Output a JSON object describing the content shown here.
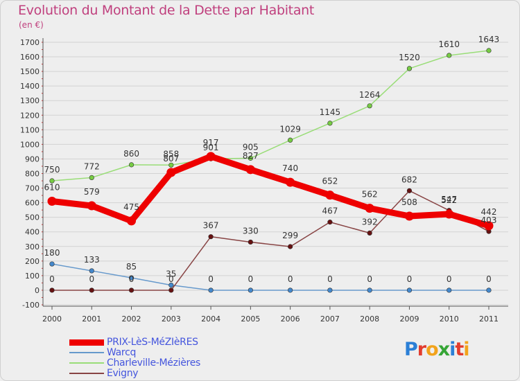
{
  "title": "Evolution du Montant de la Dette par Habitant",
  "unit_label": "(en €)",
  "logo": {
    "text": "Proxiti",
    "letters": [
      {
        "ch": "P",
        "color": "#2b7fd6"
      },
      {
        "ch": "r",
        "color": "#e23c2e"
      },
      {
        "ch": "o",
        "color": "#f2a31b"
      },
      {
        "ch": "x",
        "color": "#35a535"
      },
      {
        "ch": "i",
        "color": "#2b7fd6"
      },
      {
        "ch": "t",
        "color": "#e23c2e"
      },
      {
        "ch": "i",
        "color": "#f2a31b"
      }
    ]
  },
  "chart_data": {
    "type": "line",
    "x": [
      "2000",
      "2001",
      "2002",
      "2003",
      "2004",
      "2005",
      "2006",
      "2007",
      "2008",
      "2009",
      "2010",
      "2011"
    ],
    "ylim": [
      -100,
      1700
    ],
    "yticks": [
      "-100",
      "0",
      "100",
      "200",
      "300",
      "400",
      "500",
      "600",
      "700",
      "800",
      "900",
      "1000",
      "1100",
      "1200",
      "1300",
      "1400",
      "1500",
      "1600",
      "1700"
    ],
    "grid": "horizontal",
    "legend_position": "bottom-left",
    "series": [
      {
        "name": "PRIX-LèS-MéZIèRES",
        "color": "#ee0000",
        "marker": "#ee0000",
        "style": "thick",
        "values": [
          610,
          579,
          475,
          807,
          917,
          827,
          740,
          652,
          562,
          508,
          522,
          442
        ],
        "labels": [
          "610",
          "579",
          "475",
          "807",
          "917",
          "827",
          "740",
          "652",
          "562",
          "508",
          "522",
          "442"
        ]
      },
      {
        "name": "Warcq",
        "color": "#6699cc",
        "marker": "#4488cc",
        "style": "thin",
        "values": [
          180,
          133,
          85,
          35,
          0,
          0,
          0,
          0,
          0,
          0,
          0,
          0
        ],
        "labels": [
          "180",
          "133",
          "85",
          "35",
          "0",
          "0",
          "0",
          "0",
          "0",
          "0",
          "0",
          "0"
        ]
      },
      {
        "name": "Charleville-Mézières",
        "color": "#99dd77",
        "marker": "#77cc44",
        "style": "thin",
        "values": [
          750,
          772,
          860,
          858,
          901,
          905,
          1029,
          1145,
          1264,
          1520,
          1610,
          1643
        ],
        "labels": [
          "750",
          "772",
          "860",
          "858",
          "901",
          "905",
          "1029",
          "1145",
          "1264",
          "1520",
          "1610",
          "1643"
        ]
      },
      {
        "name": "Evigny",
        "color": "#884444",
        "marker": "#661111",
        "style": "thin",
        "values": [
          0,
          0,
          0,
          0,
          367,
          330,
          299,
          467,
          392,
          682,
          547,
          403
        ],
        "labels": [
          "0",
          "0",
          "0",
          "0",
          "367",
          "330",
          "299",
          "467",
          "392",
          "682",
          "547",
          "403"
        ]
      }
    ]
  }
}
